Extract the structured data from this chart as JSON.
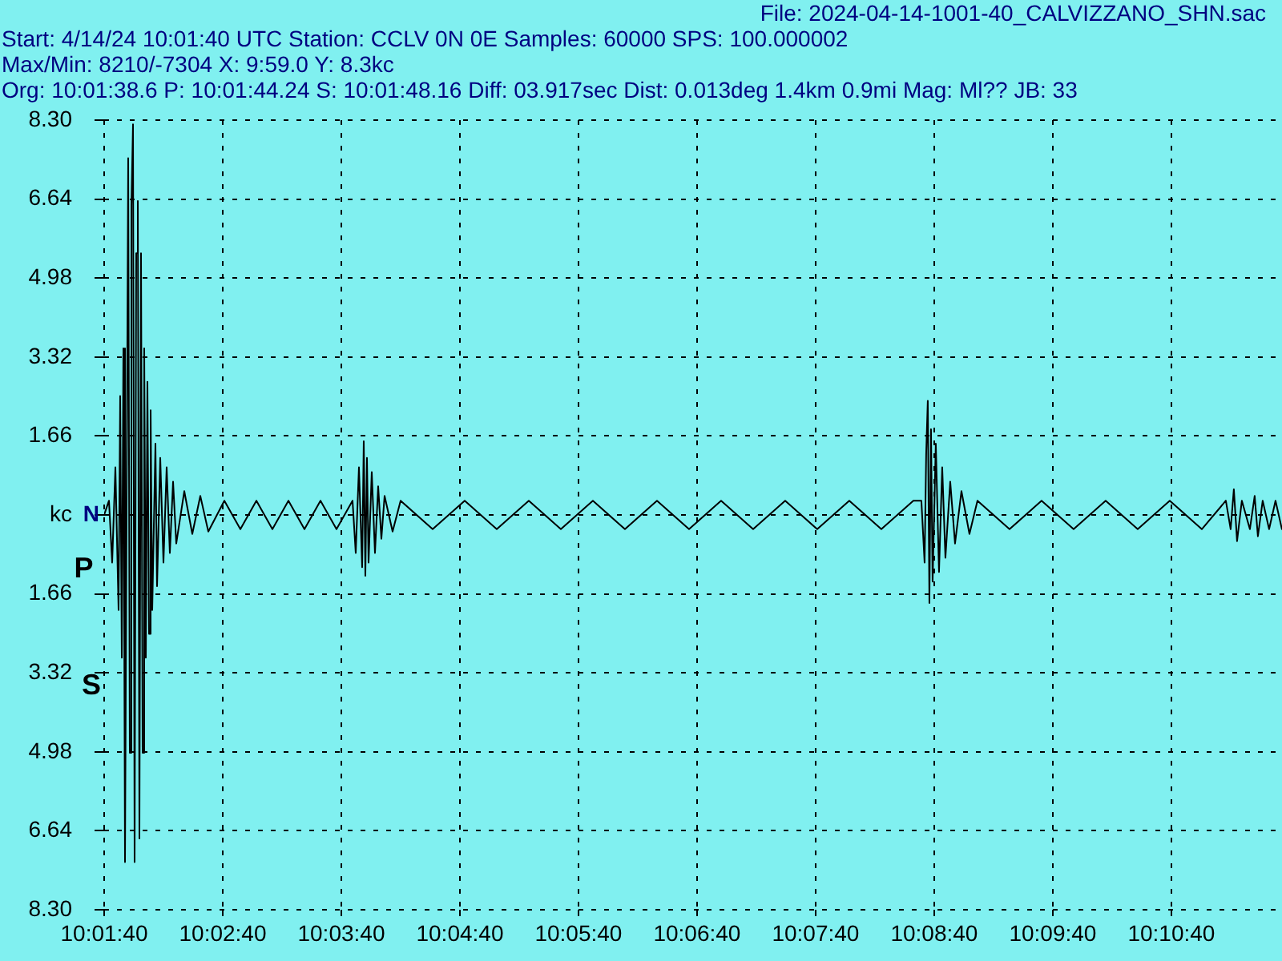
{
  "chart_data": {
    "type": "line",
    "title": "File: 2024-04-14-1001-40_CALVIZZANO_SHN.sac",
    "ylabel": "N",
    "annotations": [
      "Start: 4/14/24 10:01:40 UTC Station: CCLV 0N 0E Samples: 60000  SPS: 100.000002",
      "Max/Min: 8210/-7304 X: 9:59.0 Y: 8.3kc",
      "Org: 10:01:38.6 P: 10:01:44.24 S: 10:01:48.16 Diff: 03.917sec Dist: 0.013deg 1.4km 0.9mi  Mag: Ml?? JB: 33",
      {
        "text": "P",
        "x": 10.028956,
        "y": -1.15
      },
      {
        "text": "S",
        "x": 10.030044,
        "y": -3.6
      }
    ],
    "xlim": [
      10.027778,
      10.193333
    ],
    "xticks": [
      {
        "value": 10.027778,
        "label": "10:01:40"
      },
      {
        "value": 10.044444,
        "label": "10:02:40"
      },
      {
        "value": 10.061111,
        "label": "10:03:40"
      },
      {
        "value": 10.077778,
        "label": "10:04:40"
      },
      {
        "value": 10.094444,
        "label": "10:05:40"
      },
      {
        "value": 10.111111,
        "label": "10:06:40"
      },
      {
        "value": 10.127778,
        "label": "10:07:40"
      },
      {
        "value": 10.144444,
        "label": "10:08:40"
      },
      {
        "value": 10.161111,
        "label": "10:09:40"
      },
      {
        "value": 10.177778,
        "label": "10:10:40"
      }
    ],
    "ylim": [
      -8.3,
      8.3
    ],
    "yticks": [
      {
        "value": -8.3,
        "label": "8.30"
      },
      {
        "value": -6.64,
        "label": "6.64"
      },
      {
        "value": -4.98,
        "label": "4.98"
      },
      {
        "value": -3.32,
        "label": "3.32"
      },
      {
        "value": -1.66,
        "label": "1.66"
      },
      {
        "value": 0,
        "label": "kc"
      },
      1.66,
      3.32,
      4.98,
      6.64,
      {
        "value": 8.3,
        "label": "8.30"
      }
    ],
    "grid": true,
    "marker": "none",
    "line_style": "solid",
    "series": [
      {
        "color": "#000000",
        "x": [
          10.027778,
          10.028454,
          10.028904,
          10.029355,
          10.029805,
          10.03003,
          10.030256,
          10.030481,
          10.030706,
          10.031156,
          10.031382,
          10.031607,
          10.031832,
          10.032057,
          10.032283,
          10.032508,
          10.032733,
          10.032958,
          10.033184,
          10.033409,
          10.033634,
          10.033859,
          10.034085,
          10.03431,
          10.034535,
          10.034985,
          10.035211,
          10.035661,
          10.036112,
          10.036562,
          10.037012,
          10.037463,
          10.037913,
          10.03904,
          10.040166,
          10.041292,
          10.042418,
          10.04467,
          10.046923,
          10.049175,
          10.051427,
          10.053679,
          10.055932,
          10.058184,
          10.060436,
          10.062689,
          10.063139,
          10.06359,
          10.06404,
          10.064265,
          10.06449,
          10.064716,
          10.064941,
          10.065391,
          10.065842,
          10.066292,
          10.066743,
          10.067193,
          10.068319,
          10.069446,
          10.07395,
          10.078455,
          10.082959,
          10.087464,
          10.091969,
          10.096473,
          10.100978,
          10.105482,
          10.109987,
          10.114492,
          10.118996,
          10.123501,
          10.128005,
          10.13251,
          10.137015,
          10.141519,
          10.142645,
          10.143096,
          10.143321,
          10.143546,
          10.143771,
          10.143997,
          10.144222,
          10.144672,
          10.145123,
          10.145573,
          10.146024,
          10.146699,
          10.147375,
          10.148276,
          10.149402,
          10.150528,
          10.155033,
          10.159538,
          10.164042,
          10.168547,
          10.173051,
          10.177556,
          10.182061,
          10.185439,
          10.186115,
          10.186565,
          10.187016,
          10.187691,
          10.188817,
          10.189493,
          10.189944,
          10.190619,
          10.19152,
          10.192421,
          10.193322
        ],
        "values": [
          0,
          0.3,
          -1.0,
          1.0,
          -2.0,
          2.5,
          -3.0,
          3.5,
          -7.3,
          7.5,
          -5.0,
          6.5,
          8.21,
          -7.3,
          5.5,
          6.6,
          -6.8,
          5.5,
          -5.0,
          3.5,
          -3.0,
          2.8,
          -2.5,
          2.2,
          -2.0,
          1.5,
          -1.5,
          1.2,
          -1.0,
          1.0,
          -0.8,
          0.7,
          -0.6,
          0.5,
          -0.4,
          0.4,
          -0.35,
          0.3,
          -0.3,
          0.3,
          -0.3,
          0.3,
          -0.3,
          0.3,
          -0.3,
          0.3,
          -0.8,
          1.0,
          -1.1,
          1.55,
          -1.28,
          1.2,
          -1.0,
          0.9,
          -0.8,
          0.6,
          -0.5,
          0.4,
          -0.35,
          0.3,
          -0.3,
          0.3,
          -0.3,
          0.3,
          -0.3,
          0.3,
          -0.3,
          0.3,
          -0.3,
          0.3,
          -0.3,
          0.3,
          -0.3,
          0.3,
          -0.3,
          0.3,
          0.3,
          -1.0,
          1.3,
          2.4,
          -1.85,
          1.8,
          -1.4,
          1.5,
          -1.2,
          1.0,
          -0.9,
          0.7,
          -0.6,
          0.5,
          -0.4,
          0.3,
          -0.3,
          0.3,
          -0.3,
          0.3,
          -0.3,
          0.3,
          -0.3,
          0.3,
          -0.3,
          0.54,
          -0.55,
          0.3,
          -0.3,
          0.4,
          -0.45,
          0.3,
          -0.3,
          0.3,
          -0.3
        ]
      }
    ]
  }
}
